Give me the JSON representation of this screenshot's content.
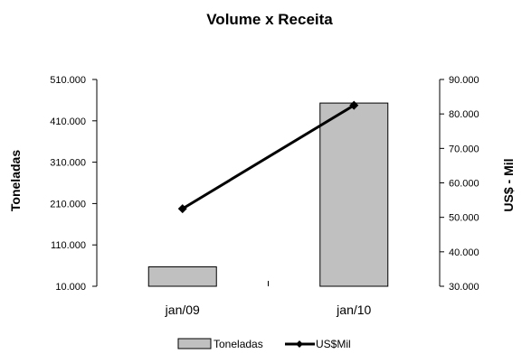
{
  "chart_data": {
    "type": "bar",
    "title": "Volume x Receita",
    "categories": [
      "jan/09",
      "jan/10"
    ],
    "series": [
      {
        "name": "Toneladas",
        "type": "bar",
        "axis": "left",
        "values": [
          57000,
          453000
        ],
        "color": "#c0c0c0"
      },
      {
        "name": "US$Mil",
        "type": "line",
        "axis": "right",
        "values": [
          52500,
          82500
        ],
        "color": "#000000"
      }
    ],
    "ylabel": "Toneladas",
    "y2label": "US$ - Mil",
    "ylim": [
      10000,
      510000
    ],
    "y2lim": [
      30000,
      90000
    ],
    "yticks": [
      "510.000",
      "410.000",
      "310.000",
      "210.000",
      "110.000",
      "10.000"
    ],
    "y2ticks": [
      "90.000",
      "80.000",
      "70.000",
      "60.000",
      "50.000",
      "40.000",
      "30.000"
    ],
    "grid": false,
    "legend_position": "bottom"
  }
}
